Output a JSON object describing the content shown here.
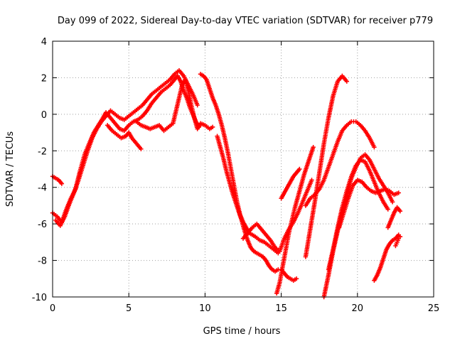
{
  "chart_data": {
    "type": "scatter",
    "title": "Day 099 of 2022, Sidereal Day-to-day VTEC variation (SDTVAR) for receiver p779",
    "xlabel": "GPS time / hours",
    "ylabel": "SDTVAR / TECUs",
    "xlim": [
      0,
      25
    ],
    "ylim": [
      -10,
      4
    ],
    "xticks": [
      "0",
      "5",
      "10",
      "15",
      "20",
      "25"
    ],
    "yticks": [
      "4",
      "2",
      "0",
      "-2",
      "-4",
      "-6",
      "-8",
      "-10"
    ],
    "grid": true,
    "marker": "plus",
    "color": "#ff0000",
    "series": [
      {
        "x": [
          0.0,
          0.3,
          0.6,
          0.9,
          1.2,
          1.5,
          1.8,
          2.1,
          2.4,
          2.7,
          3.0,
          3.3,
          3.5,
          3.8,
          4.1,
          4.4,
          4.7,
          5.0,
          5.3,
          5.6,
          5.9,
          6.2,
          6.5,
          6.8,
          7.1,
          7.4,
          7.7,
          8.0,
          8.2,
          8.4,
          8.6,
          8.8,
          9.0,
          9.2,
          9.4,
          9.6
        ],
        "y": [
          -5.4,
          -5.6,
          -5.9,
          -5.2,
          -4.6,
          -4.1,
          -3.1,
          -2.2,
          -1.6,
          -1.0,
          -0.6,
          -0.2,
          0.1,
          -0.2,
          -0.5,
          -0.8,
          -0.9,
          -0.6,
          -0.4,
          -0.3,
          -0.1,
          0.2,
          0.6,
          0.9,
          1.2,
          1.4,
          1.6,
          1.9,
          2.1,
          1.8,
          1.3,
          0.9,
          0.4,
          0.0,
          -0.4,
          -0.7
        ]
      },
      {
        "x": [
          0.2,
          0.5,
          0.8,
          1.1,
          1.4,
          1.7,
          2.0,
          2.3,
          2.6,
          2.9,
          3.2,
          3.5,
          3.8,
          4.1,
          4.4,
          4.7,
          5.0,
          5.3,
          5.6,
          5.9,
          6.2,
          6.5,
          6.8,
          7.1,
          7.4,
          7.7,
          8.0,
          8.3,
          8.6,
          8.9,
          9.2,
          9.5
        ],
        "y": [
          -5.8,
          -6.1,
          -5.6,
          -4.9,
          -4.3,
          -3.6,
          -2.8,
          -2.0,
          -1.3,
          -0.8,
          -0.4,
          -0.1,
          0.2,
          0.0,
          -0.2,
          -0.3,
          -0.1,
          0.1,
          0.3,
          0.5,
          0.8,
          1.1,
          1.3,
          1.5,
          1.7,
          1.9,
          2.2,
          2.4,
          2.1,
          1.6,
          1.1,
          0.5
        ]
      },
      {
        "x": [
          0.0,
          0.2,
          0.4,
          0.6
        ],
        "y": [
          -3.4,
          -3.5,
          -3.6,
          -3.8
        ]
      },
      {
        "x": [
          3.6,
          3.9,
          4.2,
          4.5,
          4.8,
          5.0,
          5.2,
          5.5,
          5.8
        ],
        "y": [
          -0.6,
          -0.9,
          -1.1,
          -1.3,
          -1.2,
          -1.0,
          -1.3,
          -1.6,
          -1.9
        ]
      },
      {
        "x": [
          5.5,
          5.8,
          6.1,
          6.4,
          6.7,
          7.0,
          7.3,
          7.6,
          7.9,
          8.1,
          8.3,
          8.5,
          8.7,
          8.9,
          9.1,
          9.3,
          9.5,
          9.7,
          10.0,
          10.3,
          10.5
        ],
        "y": [
          -0.4,
          -0.6,
          -0.7,
          -0.8,
          -0.7,
          -0.6,
          -0.9,
          -0.7,
          -0.5,
          0.2,
          0.9,
          1.6,
          1.9,
          1.3,
          0.5,
          -0.2,
          -0.8,
          -0.5,
          -0.6,
          -0.8,
          -0.7
        ]
      },
      {
        "x": [
          9.7,
          9.9,
          10.1,
          10.3,
          10.5,
          10.7,
          10.9,
          11.1,
          11.3,
          11.5,
          11.7,
          11.9,
          12.1,
          12.3,
          12.5,
          12.7,
          12.9,
          13.1,
          13.3,
          13.6,
          13.9,
          14.2,
          14.5,
          14.8
        ],
        "y": [
          2.2,
          2.1,
          1.9,
          1.4,
          0.9,
          0.5,
          0.0,
          -0.6,
          -1.3,
          -2.1,
          -3.0,
          -3.9,
          -4.8,
          -5.5,
          -5.9,
          -6.2,
          -6.5,
          -6.6,
          -6.7,
          -6.9,
          -7.0,
          -7.2,
          -7.4,
          -7.6
        ]
      },
      {
        "x": [
          10.8,
          11.0,
          11.2,
          11.4,
          11.6,
          11.8,
          12.0,
          12.2,
          12.4,
          12.6,
          12.8,
          13.0,
          13.2,
          13.4,
          13.6,
          13.8,
          14.0,
          14.2,
          14.4,
          14.6,
          14.8,
          15.0,
          15.2,
          15.4,
          15.6,
          15.8,
          16.0
        ],
        "y": [
          -1.2,
          -1.8,
          -2.4,
          -3.1,
          -3.7,
          -4.3,
          -4.8,
          -5.3,
          -5.8,
          -6.4,
          -6.9,
          -7.3,
          -7.5,
          -7.6,
          -7.7,
          -7.8,
          -8.0,
          -8.3,
          -8.5,
          -8.6,
          -8.5,
          -8.5,
          -8.7,
          -8.9,
          -9.0,
          -9.1,
          -9.0
        ]
      },
      {
        "x": [
          12.5,
          12.8,
          13.1,
          13.4,
          13.7,
          14.0,
          14.3,
          14.6,
          14.9,
          15.2,
          15.5,
          15.8,
          16.1,
          16.4,
          16.7,
          17.0
        ],
        "y": [
          -6.8,
          -6.5,
          -6.2,
          -6.0,
          -6.3,
          -6.6,
          -6.9,
          -7.3,
          -7.5,
          -6.8,
          -6.3,
          -5.9,
          -5.4,
          -4.8,
          -4.2,
          -3.6
        ]
      },
      {
        "x": [
          14.7,
          14.9,
          15.1,
          15.3,
          15.5,
          15.7,
          15.9,
          16.1,
          16.3,
          16.5,
          16.7,
          16.9,
          17.1
        ],
        "y": [
          -9.8,
          -9.2,
          -8.3,
          -7.4,
          -6.5,
          -5.8,
          -5.1,
          -4.5,
          -3.9,
          -3.3,
          -2.8,
          -2.3,
          -1.8
        ]
      },
      {
        "x": [
          15.0,
          15.2,
          15.4,
          15.6,
          15.8,
          16.0,
          16.2
        ],
        "y": [
          -4.6,
          -4.3,
          -4.0,
          -3.7,
          -3.4,
          -3.2,
          -3.0
        ]
      },
      {
        "x": [
          16.6,
          16.9,
          17.2,
          17.5,
          17.8,
          18.1,
          18.4,
          18.7,
          19.0,
          19.3
        ],
        "y": [
          -7.8,
          -6.3,
          -4.8,
          -3.2,
          -1.6,
          -0.2,
          1.0,
          1.8,
          2.1,
          1.8
        ]
      },
      {
        "x": [
          16.6,
          16.9,
          17.2,
          17.5,
          17.8,
          18.1,
          18.4,
          18.7,
          19.0,
          19.3,
          19.6,
          19.9,
          20.2,
          20.5,
          20.8,
          21.1
        ],
        "y": [
          -5.0,
          -4.6,
          -4.4,
          -4.1,
          -3.6,
          -2.9,
          -2.2,
          -1.5,
          -0.9,
          -0.6,
          -0.4,
          -0.4,
          -0.6,
          -0.9,
          -1.3,
          -1.8
        ]
      },
      {
        "x": [
          17.8,
          18.1,
          18.4,
          18.7,
          19.0,
          19.3,
          19.6,
          19.9,
          20.2,
          20.5,
          20.8,
          21.1,
          21.4,
          21.7,
          22.0,
          22.3
        ],
        "y": [
          -10.0,
          -8.8,
          -7.5,
          -6.4,
          -5.4,
          -4.4,
          -3.5,
          -2.9,
          -2.4,
          -2.2,
          -2.5,
          -3.0,
          -3.5,
          -3.9,
          -4.3,
          -4.8
        ]
      },
      {
        "x": [
          18.1,
          18.4,
          18.7,
          19.0,
          19.3,
          19.6,
          19.9,
          20.2,
          20.5,
          20.8,
          21.1,
          21.4,
          21.7,
          22.0
        ],
        "y": [
          -8.5,
          -7.4,
          -6.2,
          -5.1,
          -4.2,
          -3.4,
          -2.8,
          -2.5,
          -2.6,
          -3.1,
          -3.7,
          -4.3,
          -4.8,
          -5.2
        ]
      },
      {
        "x": [
          18.8,
          19.1,
          19.4,
          19.7,
          20.0,
          20.3,
          20.6,
          20.9,
          21.2,
          21.5,
          21.8,
          22.1,
          22.4,
          22.7
        ],
        "y": [
          -6.2,
          -5.4,
          -4.6,
          -3.9,
          -3.6,
          -3.7,
          -4.0,
          -4.2,
          -4.3,
          -4.2,
          -4.1,
          -4.2,
          -4.4,
          -4.3
        ]
      },
      {
        "x": [
          21.1,
          21.3,
          21.5,
          21.7,
          21.9,
          22.1,
          22.3,
          22.5,
          22.7
        ],
        "y": [
          -9.1,
          -8.8,
          -8.4,
          -7.9,
          -7.4,
          -7.1,
          -6.9,
          -6.8,
          -6.6
        ]
      },
      {
        "x": [
          22.0,
          22.2,
          22.4,
          22.6,
          22.8
        ],
        "y": [
          -6.2,
          -5.8,
          -5.4,
          -5.1,
          -5.3
        ]
      },
      {
        "x": [
          22.5,
          22.6,
          22.7,
          22.8
        ],
        "y": [
          -7.2,
          -7.0,
          -6.8,
          -6.7
        ]
      }
    ]
  }
}
